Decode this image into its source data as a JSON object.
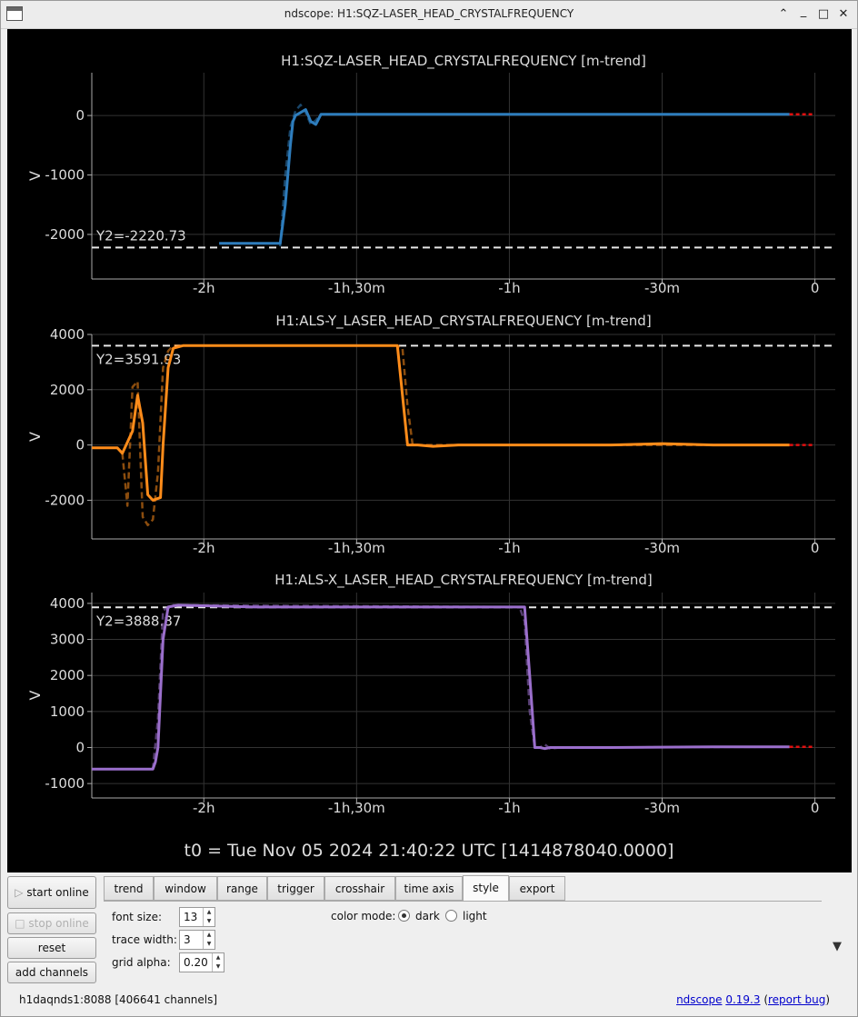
{
  "window": {
    "title": "ndscope: H1:SQZ-LASER_HEAD_CRYSTALFREQUENCY",
    "minimize_glyph": "_",
    "maximize_glyph": "□",
    "close_glyph": "✕",
    "shade_glyph": "⌃"
  },
  "plots": [
    {
      "title": "H1:SQZ-LASER_HEAD_CRYSTALFREQUENCY [m-trend]",
      "ylabel": "V",
      "y_ticks": [
        "0",
        "-1000",
        "-2000"
      ],
      "cursor_label": "Y2=-2220.73",
      "color": "#2e7dbd"
    },
    {
      "title": "H1:ALS-Y_LASER_HEAD_CRYSTALFREQUENCY [m-trend]",
      "ylabel": "V",
      "y_ticks": [
        "4000",
        "2000",
        "0",
        "-2000"
      ],
      "cursor_label": "Y2=3591.93",
      "color": "#ff8c1a"
    },
    {
      "title": "H1:ALS-X_LASER_HEAD_CRYSTALFREQUENCY [m-trend]",
      "ylabel": "V",
      "y_ticks": [
        "4000",
        "3000",
        "2000",
        "1000",
        "0",
        "-1000"
      ],
      "cursor_label": "Y2=3888.87",
      "color": "#9b6fcc"
    }
  ],
  "x_ticks": [
    "-2h",
    "-1h,30m",
    "-1h",
    "-30m",
    "0"
  ],
  "t0_label": "t0 = Tue Nov 05 2024 21:40:22 UTC [1414878040.0000]",
  "chart_data": [
    {
      "type": "line",
      "title": "H1:SQZ-LASER_HEAD_CRYSTALFREQUENCY [m-trend]",
      "ylabel": "V",
      "x_unit": "minutes relative to t0",
      "xlim": [
        -142,
        4
      ],
      "ylim": [
        -2750,
        720
      ],
      "cursor_y2": -2220.73,
      "series": [
        {
          "style": "solid",
          "x": [
            -117,
            -105,
            -104,
            -103,
            -102.5,
            -102,
            -101,
            -100,
            -99,
            -98,
            -97,
            -95,
            -80,
            -60,
            -40,
            -20,
            -5
          ],
          "y": [
            -2150,
            -2150,
            -1500,
            -500,
            -100,
            0,
            50,
            100,
            -100,
            -150,
            20,
            20,
            20,
            20,
            20,
            20,
            20
          ]
        },
        {
          "style": "dashed",
          "x": [
            -105,
            -104,
            -103,
            -102,
            -101,
            -100,
            -99,
            -98,
            -97,
            -95,
            -5
          ],
          "y": [
            -2200,
            -1000,
            -200,
            80,
            180,
            50,
            -150,
            -80,
            20,
            20,
            20
          ]
        },
        {
          "style": "dashed-red",
          "x": [
            -5,
            0
          ],
          "y": [
            20,
            20
          ]
        }
      ]
    },
    {
      "type": "line",
      "title": "H1:ALS-Y_LASER_HEAD_CRYSTALFREQUENCY [m-trend]",
      "ylabel": "V",
      "x_unit": "minutes relative to t0",
      "xlim": [
        -142,
        4
      ],
      "ylim": [
        -3400,
        4000
      ],
      "cursor_y2": 3591.93,
      "series": [
        {
          "style": "solid",
          "x": [
            -142,
            -137,
            -136,
            -134,
            -133,
            -132,
            -131,
            -130,
            -128.5,
            -128,
            -127,
            -126,
            -124,
            -100,
            -90,
            -82,
            -81,
            -80,
            -79,
            -78,
            -75,
            -70,
            -60,
            -50,
            -40,
            -30,
            -20,
            -5
          ],
          "y": [
            -100,
            -100,
            -300,
            500,
            1800,
            800,
            -1800,
            -2000,
            -1900,
            0,
            2800,
            3500,
            3600,
            3600,
            3600,
            3600,
            1800,
            0,
            0,
            0,
            -50,
            0,
            0,
            0,
            0,
            50,
            0,
            0
          ]
        },
        {
          "style": "dashed",
          "x": [
            -136,
            -135,
            -134,
            -133,
            -132,
            -131,
            -130,
            -129,
            -128,
            -127,
            -126,
            -124,
            -82,
            -81,
            -80,
            -79,
            -78,
            -5
          ],
          "y": [
            -300,
            -2200,
            2100,
            2300,
            -2600,
            -2900,
            -2700,
            -1000,
            2800,
            3400,
            3600,
            3600,
            3600,
            3500,
            1400,
            0,
            0,
            0
          ]
        },
        {
          "style": "dashed-red",
          "x": [
            -5,
            0
          ],
          "y": [
            0,
            0
          ]
        }
      ]
    },
    {
      "type": "line",
      "title": "H1:ALS-X_LASER_HEAD_CRYSTALFREQUENCY [m-trend]",
      "ylabel": "V",
      "x_unit": "minutes relative to t0",
      "xlim": [
        -142,
        4
      ],
      "ylim": [
        -1400,
        4300
      ],
      "cursor_y2": 3888.87,
      "series": [
        {
          "style": "solid",
          "x": [
            -142,
            -130,
            -129.5,
            -129,
            -128,
            -127,
            -125,
            -110,
            -100,
            -80,
            -70,
            -60,
            -57,
            -56,
            -55,
            -54,
            -53,
            -52,
            -50,
            -45,
            -40,
            -20,
            -5
          ],
          "y": [
            -600,
            -600,
            -400,
            0,
            3000,
            3900,
            3950,
            3900,
            3900,
            3900,
            3900,
            3900,
            3900,
            2000,
            0,
            0,
            -30,
            0,
            0,
            0,
            0,
            20,
            20
          ]
        },
        {
          "style": "dashed",
          "x": [
            -130,
            -129,
            -128,
            -127,
            -126,
            -58,
            -57,
            -56,
            -55,
            -54,
            -53,
            -52,
            -50,
            -5
          ],
          "y": [
            -600,
            800,
            3800,
            3900,
            3950,
            3900,
            3500,
            1000,
            0,
            0,
            80,
            -30,
            0,
            20
          ]
        },
        {
          "style": "dashed-red",
          "x": [
            -5,
            0
          ],
          "y": [
            20,
            20
          ]
        }
      ]
    }
  ],
  "controls": {
    "start_online": "start online",
    "stop_online": "stop online",
    "reset": "reset",
    "add_channels": "add channels",
    "play_glyph": "▷",
    "stop_glyph": "□",
    "expand_glyph": "▼",
    "tabs": [
      "trend",
      "window",
      "range",
      "trigger",
      "crosshair",
      "time axis",
      "style",
      "export"
    ],
    "active_tab": "style",
    "style": {
      "font_size_label": "font size:",
      "font_size": "13",
      "trace_width_label": "trace width:",
      "trace_width": "3",
      "grid_alpha_label": "grid alpha:",
      "grid_alpha": "0.20",
      "color_mode_label": "color mode:",
      "dark_label": "dark",
      "light_label": "light",
      "selected_mode": "dark"
    }
  },
  "status": {
    "server": "h1daqnds1:8088  [406641 channels]",
    "app_name": "ndscope",
    "version": "0.19.3",
    "report_bug": "report bug",
    "paren_open": "(",
    "paren_close": ")"
  }
}
